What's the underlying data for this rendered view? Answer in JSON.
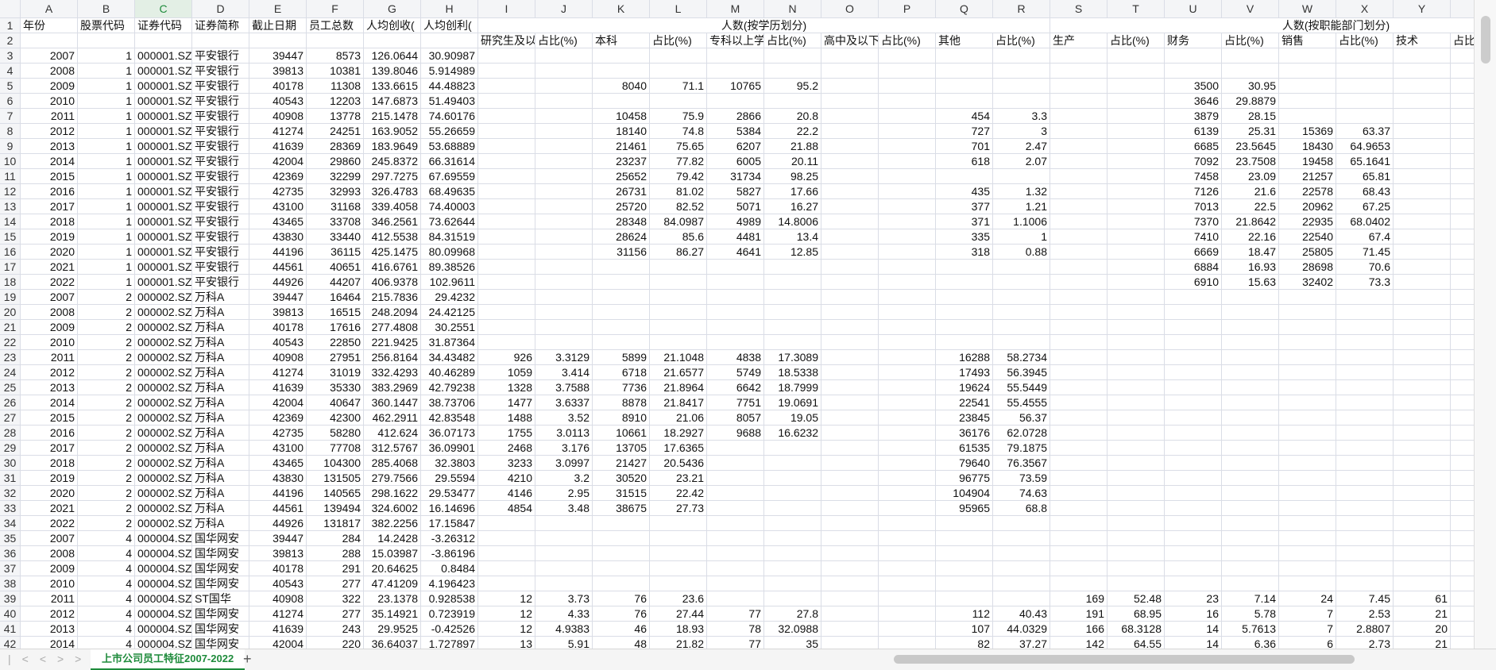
{
  "sheet": {
    "column_letters": [
      "A",
      "B",
      "C",
      "D",
      "E",
      "F",
      "G",
      "H",
      "I",
      "J",
      "K",
      "L",
      "M",
      "N",
      "O",
      "P",
      "Q",
      "R",
      "S",
      "T",
      "U",
      "V",
      "W",
      "X",
      "Y"
    ],
    "row_numbers": [
      1,
      2,
      3,
      4,
      5,
      6,
      7,
      8,
      9,
      10,
      11,
      12,
      13,
      14,
      15,
      16,
      17,
      18,
      19,
      20,
      21,
      22,
      23,
      24,
      25,
      26,
      27,
      28,
      29,
      30,
      31,
      32,
      33,
      34,
      35,
      36,
      37,
      38,
      39,
      40,
      41,
      42
    ],
    "merged_headers": [
      "人数(按学历划分)",
      "人数(按职能部门划分)"
    ],
    "rows": [
      {
        "A": "年份",
        "B": "股票代码",
        "C": "证券代码",
        "D": "证券简称",
        "E": "截止日期",
        "F": "员工总数",
        "G": "人均创收(",
        "H": "人均创利("
      },
      {
        "I": "研究生及以",
        "J": "占比(%)",
        "K": "本科",
        "L": "占比(%)",
        "M": "专科以上学",
        "N": "占比(%)",
        "O": "高中及以下",
        "P": "占比(%)",
        "Q": "其他",
        "R": "占比(%)",
        "S": "生产",
        "T": "占比(%)",
        "U": "财务",
        "V": "占比(%)",
        "W": "销售",
        "X": "占比(%)",
        "Y": "技术",
        "Z": "占比"
      },
      {
        "A": 2007,
        "B": 1,
        "C": "000001.SZ",
        "D": "平安银行",
        "E": 39447,
        "F": 8573,
        "G": 126.0644,
        "H": 30.90987
      },
      {
        "A": 2008,
        "B": 1,
        "C": "000001.SZ",
        "D": "平安银行",
        "E": 39813,
        "F": 10381,
        "G": 139.8046,
        "H": 5.914989
      },
      {
        "A": 2009,
        "B": 1,
        "C": "000001.SZ",
        "D": "平安银行",
        "E": 40178,
        "F": 11308,
        "G": 133.6615,
        "H": 44.48823,
        "K": 8040,
        "L": 71.1,
        "M": 10765,
        "N": 95.2,
        "U": 3500,
        "V": 30.95
      },
      {
        "A": 2010,
        "B": 1,
        "C": "000001.SZ",
        "D": "平安银行",
        "E": 40543,
        "F": 12203,
        "G": 147.6873,
        "H": 51.49403,
        "U": 3646,
        "V": 29.8879
      },
      {
        "A": 2011,
        "B": 1,
        "C": "000001.SZ",
        "D": "平安银行",
        "E": 40908,
        "F": 13778,
        "G": 215.1478,
        "H": 74.60176,
        "K": 10458,
        "L": 75.9,
        "M": 2866,
        "N": 20.8,
        "Q": 454,
        "R": 3.3,
        "U": 3879,
        "V": 28.15
      },
      {
        "A": 2012,
        "B": 1,
        "C": "000001.SZ",
        "D": "平安银行",
        "E": 41274,
        "F": 24251,
        "G": 163.9052,
        "H": 55.26659,
        "K": 18140,
        "L": 74.8,
        "M": 5384,
        "N": 22.2,
        "Q": 727,
        "R": 3,
        "U": 6139,
        "V": 25.31,
        "W": 15369,
        "X": 63.37
      },
      {
        "A": 2013,
        "B": 1,
        "C": "000001.SZ",
        "D": "平安银行",
        "E": 41639,
        "F": 28369,
        "G": 183.9649,
        "H": 53.68889,
        "K": 21461,
        "L": 75.65,
        "M": 6207,
        "N": 21.88,
        "Q": 701,
        "R": 2.47,
        "U": 6685,
        "V": 23.5645,
        "W": 18430,
        "X": 64.9653
      },
      {
        "A": 2014,
        "B": 1,
        "C": "000001.SZ",
        "D": "平安银行",
        "E": 42004,
        "F": 29860,
        "G": 245.8372,
        "H": 66.31614,
        "K": 23237,
        "L": 77.82,
        "M": 6005,
        "N": 20.11,
        "Q": 618,
        "R": 2.07,
        "U": 7092,
        "V": 23.7508,
        "W": 19458,
        "X": 65.1641
      },
      {
        "A": 2015,
        "B": 1,
        "C": "000001.SZ",
        "D": "平安银行",
        "E": 42369,
        "F": 32299,
        "G": 297.7275,
        "H": 67.69559,
        "K": 25652,
        "L": 79.42,
        "M": 31734,
        "N": 98.25,
        "U": 7458,
        "V": 23.09,
        "W": 21257,
        "X": 65.81
      },
      {
        "A": 2016,
        "B": 1,
        "C": "000001.SZ",
        "D": "平安银行",
        "E": 42735,
        "F": 32993,
        "G": 326.4783,
        "H": 68.49635,
        "K": 26731,
        "L": 81.02,
        "M": 5827,
        "N": 17.66,
        "Q": 435,
        "R": 1.32,
        "U": 7126,
        "V": 21.6,
        "W": 22578,
        "X": 68.43
      },
      {
        "A": 2017,
        "B": 1,
        "C": "000001.SZ",
        "D": "平安银行",
        "E": 43100,
        "F": 31168,
        "G": 339.4058,
        "H": 74.40003,
        "K": 25720,
        "L": 82.52,
        "M": 5071,
        "N": 16.27,
        "Q": 377,
        "R": 1.21,
        "U": 7013,
        "V": 22.5,
        "W": 20962,
        "X": 67.25
      },
      {
        "A": 2018,
        "B": 1,
        "C": "000001.SZ",
        "D": "平安银行",
        "E": 43465,
        "F": 33708,
        "G": 346.2561,
        "H": 73.62644,
        "K": 28348,
        "L": 84.0987,
        "M": 4989,
        "N": 14.8006,
        "Q": 371,
        "R": 1.1006,
        "U": 7370,
        "V": 21.8642,
        "W": 22935,
        "X": 68.0402
      },
      {
        "A": 2019,
        "B": 1,
        "C": "000001.SZ",
        "D": "平安银行",
        "E": 43830,
        "F": 33440,
        "G": 412.5538,
        "H": 84.31519,
        "K": 28624,
        "L": 85.6,
        "M": 4481,
        "N": 13.4,
        "Q": 335,
        "R": 1,
        "U": 7410,
        "V": 22.16,
        "W": 22540,
        "X": 67.4
      },
      {
        "A": 2020,
        "B": 1,
        "C": "000001.SZ",
        "D": "平安银行",
        "E": 44196,
        "F": 36115,
        "G": 425.1475,
        "H": 80.09968,
        "K": 31156,
        "L": 86.27,
        "M": 4641,
        "N": 12.85,
        "Q": 318,
        "R": 0.88,
        "U": 6669,
        "V": 18.47,
        "W": 25805,
        "X": 71.45
      },
      {
        "A": 2021,
        "B": 1,
        "C": "000001.SZ",
        "D": "平安银行",
        "E": 44561,
        "F": 40651,
        "G": 416.6761,
        "H": 89.38526,
        "U": 6884,
        "V": 16.93,
        "W": 28698,
        "X": 70.6
      },
      {
        "A": 2022,
        "B": 1,
        "C": "000001.SZ",
        "D": "平安银行",
        "E": 44926,
        "F": 44207,
        "G": 406.9378,
        "H": 102.9611,
        "U": 6910,
        "V": 15.63,
        "W": 32402,
        "X": 73.3
      },
      {
        "A": 2007,
        "B": 2,
        "C": "000002.SZ",
        "D": "万科A",
        "E": 39447,
        "F": 16464,
        "G": 215.7836,
        "H": 29.4232
      },
      {
        "A": 2008,
        "B": 2,
        "C": "000002.SZ",
        "D": "万科A",
        "E": 39813,
        "F": 16515,
        "G": 248.2094,
        "H": 24.42125
      },
      {
        "A": 2009,
        "B": 2,
        "C": "000002.SZ",
        "D": "万科A",
        "E": 40178,
        "F": 17616,
        "G": 277.4808,
        "H": 30.2551
      },
      {
        "A": 2010,
        "B": 2,
        "C": "000002.SZ",
        "D": "万科A",
        "E": 40543,
        "F": 22850,
        "G": 221.9425,
        "H": 31.87364
      },
      {
        "A": 2011,
        "B": 2,
        "C": "000002.SZ",
        "D": "万科A",
        "E": 40908,
        "F": 27951,
        "G": 256.8164,
        "H": 34.43482,
        "I": 926,
        "J": 3.3129,
        "K": 5899,
        "L": 21.1048,
        "M": 4838,
        "N": 17.3089,
        "Q": 16288,
        "R": 58.2734
      },
      {
        "A": 2012,
        "B": 2,
        "C": "000002.SZ",
        "D": "万科A",
        "E": 41274,
        "F": 31019,
        "G": 332.4293,
        "H": 40.46289,
        "I": 1059,
        "J": 3.414,
        "K": 6718,
        "L": 21.6577,
        "M": 5749,
        "N": 18.5338,
        "Q": 17493,
        "R": 56.3945
      },
      {
        "A": 2013,
        "B": 2,
        "C": "000002.SZ",
        "D": "万科A",
        "E": 41639,
        "F": 35330,
        "G": 383.2969,
        "H": 42.79238,
        "I": 1328,
        "J": 3.7588,
        "K": 7736,
        "L": 21.8964,
        "M": 6642,
        "N": 18.7999,
        "Q": 19624,
        "R": 55.5449
      },
      {
        "A": 2014,
        "B": 2,
        "C": "000002.SZ",
        "D": "万科A",
        "E": 42004,
        "F": 40647,
        "G": 360.1447,
        "H": 38.73706,
        "I": 1477,
        "J": 3.6337,
        "K": 8878,
        "L": 21.8417,
        "M": 7751,
        "N": 19.0691,
        "Q": 22541,
        "R": 55.4555
      },
      {
        "A": 2015,
        "B": 2,
        "C": "000002.SZ",
        "D": "万科A",
        "E": 42369,
        "F": 42300,
        "G": 462.2911,
        "H": 42.83548,
        "I": 1488,
        "J": 3.52,
        "K": 8910,
        "L": 21.06,
        "M": 8057,
        "N": 19.05,
        "Q": 23845,
        "R": 56.37
      },
      {
        "A": 2016,
        "B": 2,
        "C": "000002.SZ",
        "D": "万科A",
        "E": 42735,
        "F": 58280,
        "G": 412.624,
        "H": 36.07173,
        "I": 1755,
        "J": 3.0113,
        "K": 10661,
        "L": 18.2927,
        "M": 9688,
        "N": 16.6232,
        "Q": 36176,
        "R": 62.0728
      },
      {
        "A": 2017,
        "B": 2,
        "C": "000002.SZ",
        "D": "万科A",
        "E": 43100,
        "F": 77708,
        "G": 312.5767,
        "H": 36.09901,
        "I": 2468,
        "J": 3.176,
        "K": 13705,
        "L": 17.6365,
        "Q": 61535,
        "R": 79.1875
      },
      {
        "A": 2018,
        "B": 2,
        "C": "000002.SZ",
        "D": "万科A",
        "E": 43465,
        "F": 104300,
        "G": 285.4068,
        "H": 32.3803,
        "I": 3233,
        "J": 3.0997,
        "K": 21427,
        "L": 20.5436,
        "Q": 79640,
        "R": 76.3567
      },
      {
        "A": 2019,
        "B": 2,
        "C": "000002.SZ",
        "D": "万科A",
        "E": 43830,
        "F": 131505,
        "G": 279.7566,
        "H": 29.5594,
        "I": 4210,
        "J": 3.2,
        "K": 30520,
        "L": 23.21,
        "Q": 96775,
        "R": 73.59
      },
      {
        "A": 2020,
        "B": 2,
        "C": "000002.SZ",
        "D": "万科A",
        "E": 44196,
        "F": 140565,
        "G": 298.1622,
        "H": 29.53477,
        "I": 4146,
        "J": 2.95,
        "K": 31515,
        "L": 22.42,
        "Q": 104904,
        "R": 74.63
      },
      {
        "A": 2021,
        "B": 2,
        "C": "000002.SZ",
        "D": "万科A",
        "E": 44561,
        "F": 139494,
        "G": 324.6002,
        "H": 16.14696,
        "I": 4854,
        "J": 3.48,
        "K": 38675,
        "L": 27.73,
        "Q": 95965,
        "R": 68.8
      },
      {
        "A": 2022,
        "B": 2,
        "C": "000002.SZ",
        "D": "万科A",
        "E": 44926,
        "F": 131817,
        "G": 382.2256,
        "H": 17.15847
      },
      {
        "A": 2007,
        "B": 4,
        "C": "000004.SZ",
        "D": "国华网安",
        "E": 39447,
        "F": 284,
        "G": 14.2428,
        "H": -3.26312
      },
      {
        "A": 2008,
        "B": 4,
        "C": "000004.SZ",
        "D": "国华网安",
        "E": 39813,
        "F": 288,
        "G": 15.03987,
        "H": -3.86196
      },
      {
        "A": 2009,
        "B": 4,
        "C": "000004.SZ",
        "D": "国华网安",
        "E": 40178,
        "F": 291,
        "G": 20.64625,
        "H": 0.8484
      },
      {
        "A": 2010,
        "B": 4,
        "C": "000004.SZ",
        "D": "国华网安",
        "E": 40543,
        "F": 277,
        "G": 47.41209,
        "H": 4.196423
      },
      {
        "A": 2011,
        "B": 4,
        "C": "000004.SZ",
        "D": "ST国华",
        "E": 40908,
        "F": 322,
        "G": 23.1378,
        "H": 0.928538,
        "I": 12,
        "J": 3.73,
        "K": 76,
        "L": 23.6,
        "S": 169,
        "T": 52.48,
        "U": 23,
        "V": 7.14,
        "W": 24,
        "X": 7.45,
        "Y": 61
      },
      {
        "A": 2012,
        "B": 4,
        "C": "000004.SZ",
        "D": "国华网安",
        "E": 41274,
        "F": 277,
        "G": 35.14921,
        "H": 0.723919,
        "I": 12,
        "J": 4.33,
        "K": 76,
        "L": 27.44,
        "M": 77,
        "N": 27.8,
        "Q": 112,
        "R": 40.43,
        "S": 191,
        "T": 68.95,
        "U": 16,
        "V": 5.78,
        "W": 7,
        "X": 2.53,
        "Y": 21
      },
      {
        "A": 2013,
        "B": 4,
        "C": "000004.SZ",
        "D": "国华网安",
        "E": 41639,
        "F": 243,
        "G": 29.9525,
        "H": -0.42526,
        "I": 12,
        "J": 4.9383,
        "K": 46,
        "L": 18.93,
        "M": 78,
        "N": 32.0988,
        "Q": 107,
        "R": 44.0329,
        "S": 166,
        "T": 68.3128,
        "U": 14,
        "V": 5.7613,
        "W": 7,
        "X": 2.8807,
        "Y": 20
      },
      {
        "A": 2014,
        "B": 4,
        "C": "000004.SZ",
        "D": "国华网安",
        "E": 42004,
        "F": 220,
        "G": 36.64037,
        "H": 1.727897,
        "I": 13,
        "J": 5.91,
        "K": 48,
        "L": 21.82,
        "M": 77,
        "N": 35,
        "Q": 82,
        "R": 37.27,
        "S": 142,
        "T": 64.55,
        "U": 14,
        "V": 6.36,
        "W": 6,
        "X": 2.73,
        "Y": 21
      }
    ]
  },
  "tab": "上市公司员工特征2007-2022"
}
